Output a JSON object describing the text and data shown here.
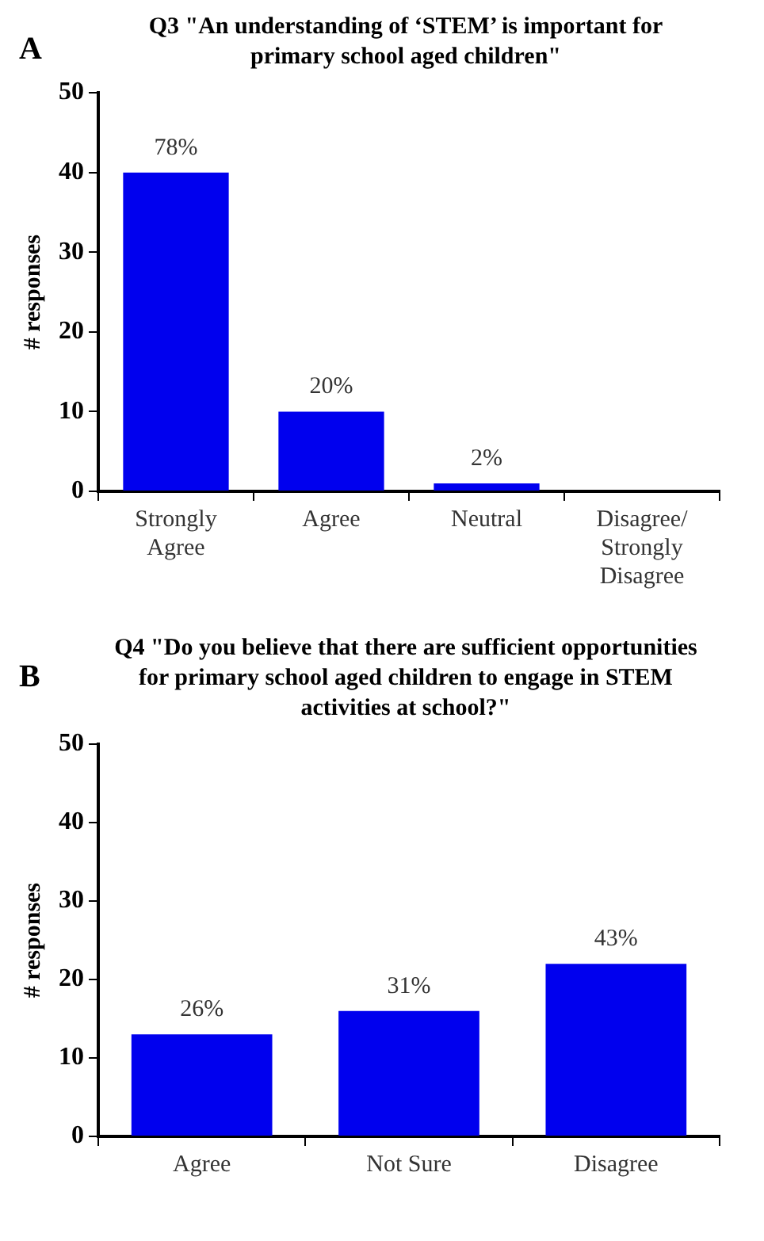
{
  "chart_data": [
    {
      "type": "bar",
      "title": "Q3 \"An understanding of ‘STEM’ is important for primary school aged children\"",
      "annotations": [
        "A",
        {
          "text": "78%",
          "x": "Strongly Agree",
          "y": 40
        },
        {
          "text": "20%",
          "x": "Agree",
          "y": 10
        },
        {
          "text": "2%",
          "x": "Neutral",
          "y": 1
        }
      ],
      "ylabel": "# responses",
      "categories": [
        "Strongly Agree",
        "Agree",
        "Neutral",
        "Disagree/ Strongly Disagree"
      ],
      "values": [
        40,
        10,
        1,
        0
      ],
      "color": "#0000ee",
      "ylim": [
        0,
        50
      ],
      "yticks": [
        0,
        10,
        20,
        30,
        40,
        50
      ],
      "grid": false,
      "legend": false
    },
    {
      "type": "bar",
      "title": "Q4 \"Do you believe that there are sufficient opportunities for primary school aged children to engage in STEM activities at school?\"",
      "annotations": [
        "B",
        {
          "text": "26%",
          "x": "Agree",
          "y": 13
        },
        {
          "text": "31%",
          "x": "Not Sure",
          "y": 16
        },
        {
          "text": "43%",
          "x": "Disagree",
          "y": 22
        }
      ],
      "ylabel": "# responses",
      "categories": [
        "Agree",
        "Not Sure",
        "Disagree"
      ],
      "values": [
        13,
        16,
        22
      ],
      "color": "#0000ee",
      "ylim": [
        0,
        50
      ],
      "yticks": [
        0,
        10,
        20,
        30,
        40,
        50
      ],
      "grid": false,
      "legend": false
    }
  ]
}
